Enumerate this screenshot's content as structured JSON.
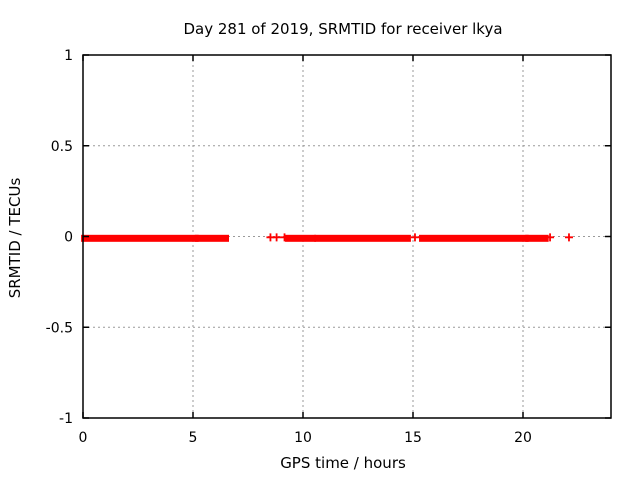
{
  "colors": {
    "background": "#ffffff",
    "axis": "#000000",
    "grid": "#9a9a9a",
    "marker": "#ff0000"
  },
  "chart_data": {
    "type": "scatter",
    "title": "Day 281 of 2019, SRMTID for receiver lkya",
    "xlabel": "GPS time / hours",
    "ylabel": "SRMTID / TECUs",
    "xlim": [
      0,
      24
    ],
    "ylim": [
      -1,
      1
    ],
    "xticks": [
      0,
      5,
      10,
      15,
      20
    ],
    "yticks": [
      1,
      0.5,
      0,
      -0.5,
      -1
    ],
    "grid": "dotted",
    "legend": "none",
    "series": [
      {
        "name": "SRMTID",
        "marker": "plus",
        "color": "#ff0000",
        "y_level": -0.01,
        "dense_runs_hours": [
          [
            0.05,
            5.12
          ],
          [
            5.22,
            6.5
          ],
          [
            9.32,
            10.45
          ],
          [
            10.65,
            14.77
          ],
          [
            15.41,
            20.12
          ],
          [
            20.24,
            21.03
          ]
        ],
        "isolated_points_hours": [
          8.52,
          8.8,
          9.16,
          15.09,
          21.23,
          22.09
        ]
      }
    ]
  }
}
